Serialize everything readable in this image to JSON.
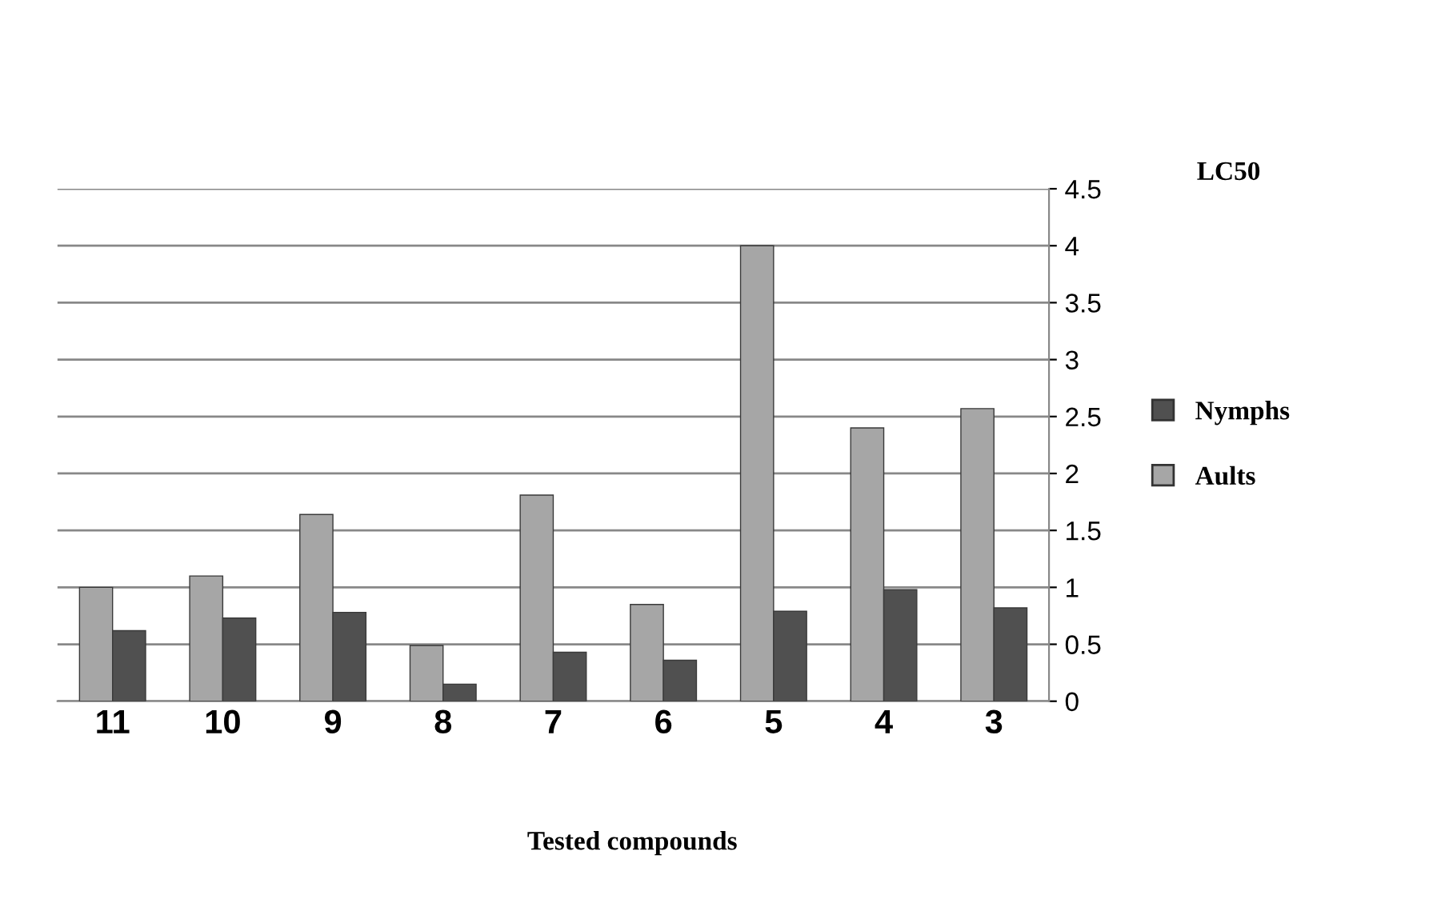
{
  "chart_data": {
    "type": "bar",
    "ylabel": "LC50",
    "xlabel": "Tested compounds",
    "categories": [
      "11",
      "10",
      "9",
      "8",
      "7",
      "6",
      "5",
      "4",
      "3"
    ],
    "series": [
      {
        "name": "Aults",
        "color": "#a6a6a6",
        "values": [
          1.0,
          1.1,
          1.64,
          0.49,
          1.81,
          0.85,
          4.0,
          2.4,
          2.57
        ]
      },
      {
        "name": "Nymphs",
        "color": "#505050",
        "values": [
          0.62,
          0.73,
          0.78,
          0.15,
          0.43,
          0.36,
          0.79,
          0.98,
          0.82
        ]
      }
    ],
    "ylim": [
      0,
      4.5
    ],
    "yticks": [
      0,
      0.5,
      1,
      1.5,
      2,
      2.5,
      3,
      3.5,
      4,
      4.5
    ],
    "grid": "y",
    "legend": "right"
  }
}
